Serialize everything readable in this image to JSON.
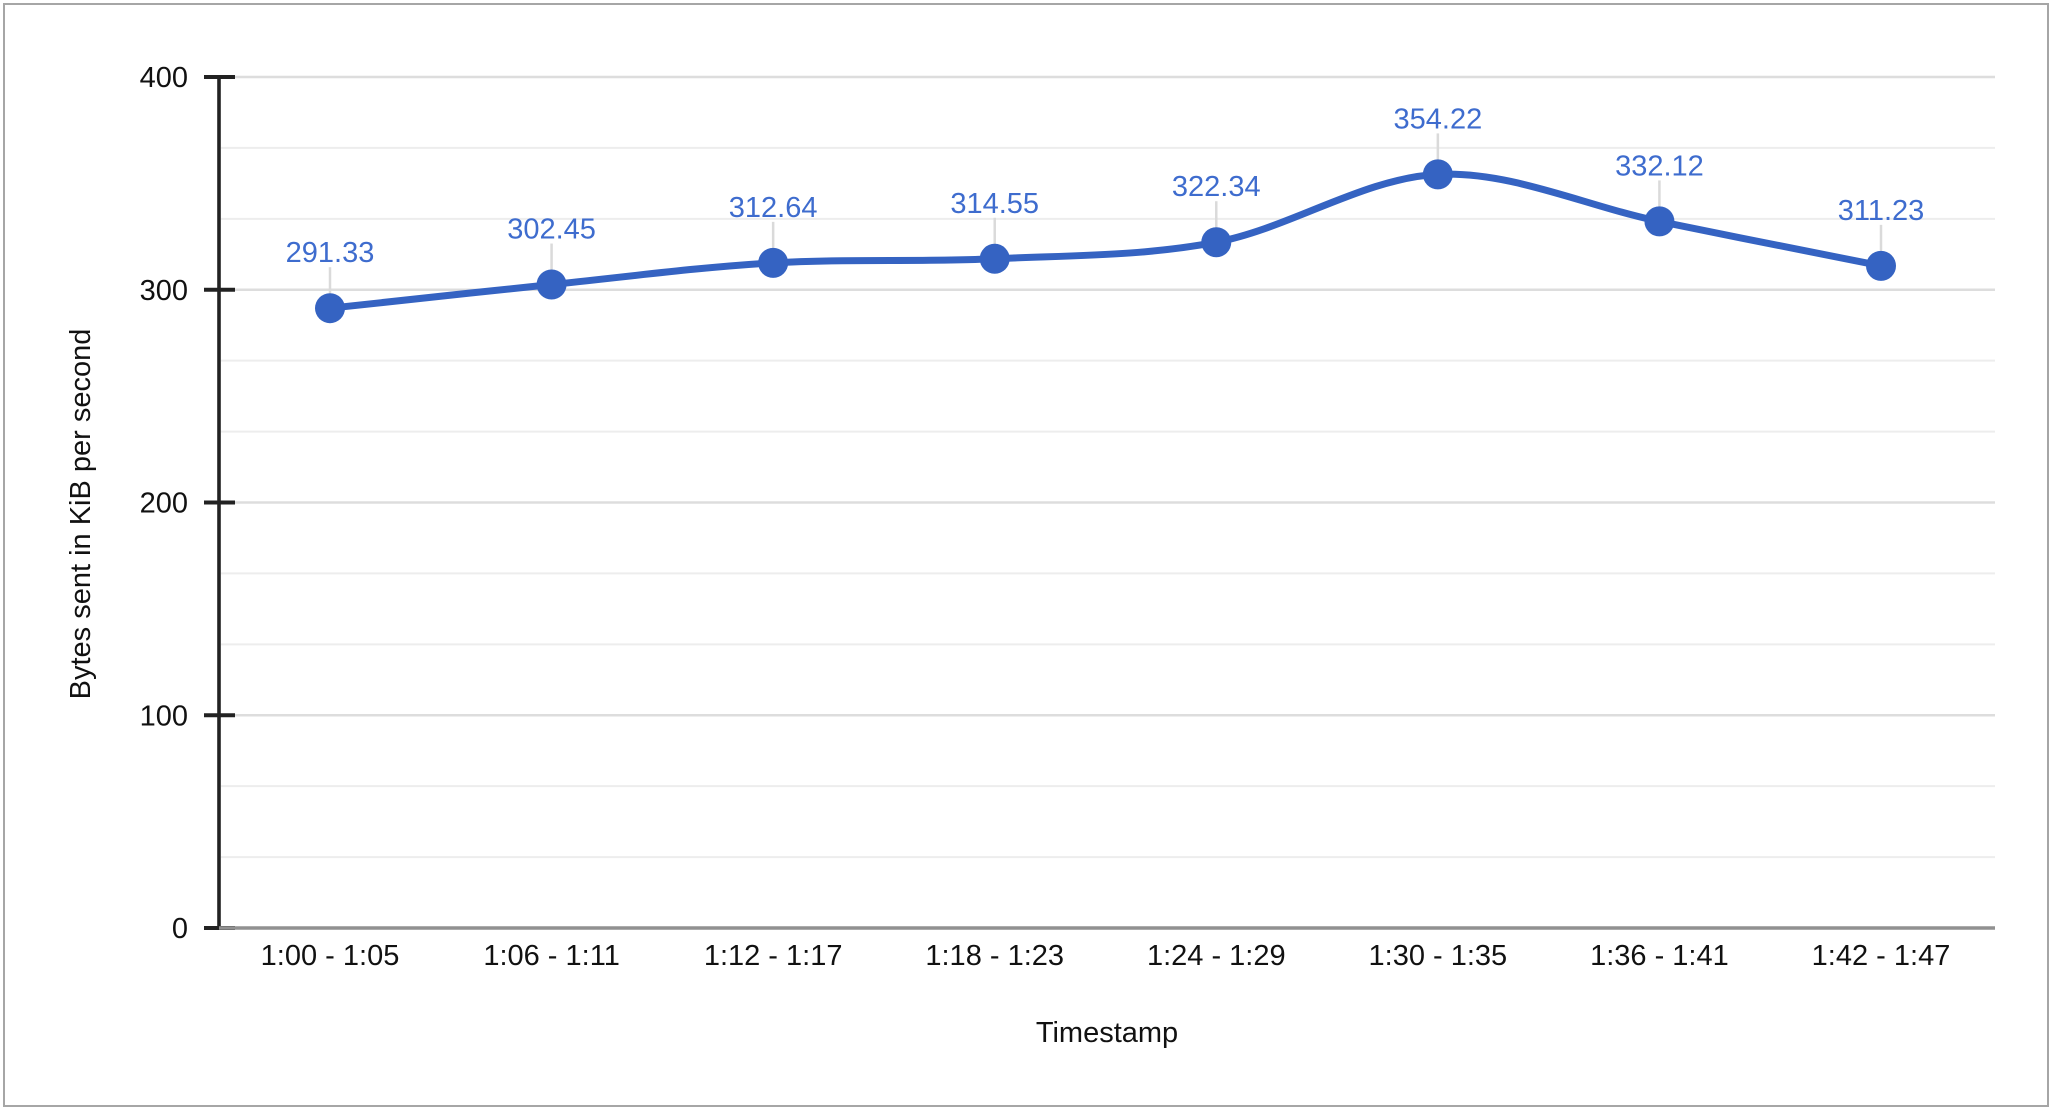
{
  "chart_data": {
    "type": "line",
    "smooth": true,
    "title": "",
    "xlabel": "Timestamp",
    "ylabel": "Bytes sent in KiB per second",
    "categories": [
      "1:00 - 1:05",
      "1:06 - 1:11",
      "1:12 - 1:17",
      "1:18 - 1:23",
      "1:24 - 1:29",
      "1:30 - 1:35",
      "1:36 - 1:41",
      "1:42 - 1:47"
    ],
    "values": [
      291.33,
      302.45,
      312.64,
      314.55,
      322.34,
      354.22,
      332.12,
      311.23
    ],
    "value_labels": [
      "291.33",
      "302.45",
      "312.64",
      "314.55",
      "322.34",
      "354.22",
      "332.12",
      "311.23"
    ],
    "y_ticks": [
      0,
      100,
      200,
      300,
      400
    ],
    "ylim": [
      0,
      400
    ],
    "minor_gridline_subdivisions": 3,
    "grid": "major+minor horizontal",
    "legend": "none",
    "colors": {
      "series": "#3563c2",
      "data_label": "#3e6cce",
      "axis_text": "#111111",
      "axis_line": "#222222",
      "gridline_major": "#dddddd",
      "gridline_minor": "#ededed",
      "baseline": "#919191",
      "leader_line": "#dadada",
      "background": "#ffffff",
      "border": "#a6a6a6"
    }
  }
}
